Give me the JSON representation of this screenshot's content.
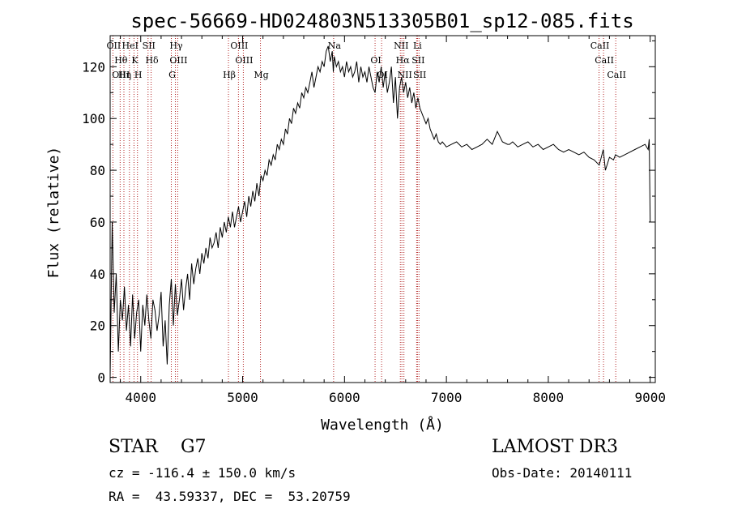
{
  "chart_data": {
    "type": "line",
    "title": "spec-56669-HD024803N513305B01_sp12-085.fits",
    "xlabel": "Wavelength (Å)",
    "ylabel": "Flux (relative)",
    "xlim": [
      3700,
      9050
    ],
    "ylim": [
      -2,
      132
    ],
    "xticks": [
      4000,
      5000,
      6000,
      7000,
      8000,
      9000
    ],
    "yticks": [
      0,
      20,
      40,
      60,
      80,
      100,
      120
    ],
    "grid": false,
    "series": [
      {
        "name": "flux",
        "x": [
          3700,
          3720,
          3740,
          3760,
          3780,
          3800,
          3820,
          3840,
          3860,
          3880,
          3900,
          3920,
          3940,
          3960,
          3980,
          4000,
          4020,
          4040,
          4060,
          4080,
          4100,
          4120,
          4140,
          4160,
          4180,
          4200,
          4220,
          4240,
          4260,
          4280,
          4300,
          4320,
          4340,
          4360,
          4380,
          4400,
          4420,
          4440,
          4460,
          4480,
          4500,
          4520,
          4540,
          4560,
          4580,
          4600,
          4620,
          4640,
          4660,
          4680,
          4700,
          4720,
          4740,
          4760,
          4780,
          4800,
          4820,
          4840,
          4860,
          4880,
          4900,
          4920,
          4940,
          4960,
          4980,
          5000,
          5020,
          5040,
          5060,
          5080,
          5100,
          5120,
          5140,
          5160,
          5180,
          5200,
          5220,
          5240,
          5260,
          5280,
          5300,
          5320,
          5340,
          5360,
          5380,
          5400,
          5420,
          5440,
          5460,
          5480,
          5500,
          5520,
          5540,
          5560,
          5580,
          5600,
          5620,
          5640,
          5660,
          5680,
          5700,
          5720,
          5740,
          5760,
          5780,
          5800,
          5820,
          5840,
          5860,
          5880,
          5890,
          5900,
          5920,
          5940,
          5960,
          5980,
          6000,
          6020,
          6040,
          6060,
          6080,
          6100,
          6120,
          6140,
          6160,
          6180,
          6200,
          6220,
          6240,
          6260,
          6280,
          6300,
          6320,
          6340,
          6360,
          6380,
          6400,
          6420,
          6440,
          6460,
          6480,
          6500,
          6520,
          6540,
          6560,
          6580,
          6600,
          6620,
          6640,
          6660,
          6680,
          6700,
          6720,
          6740,
          6760,
          6780,
          6800,
          6820,
          6840,
          6860,
          6880,
          6900,
          6920,
          6940,
          6960,
          6980,
          7000,
          7050,
          7100,
          7150,
          7200,
          7250,
          7300,
          7350,
          7400,
          7450,
          7500,
          7550,
          7600,
          7620,
          7650,
          7700,
          7750,
          7800,
          7850,
          7900,
          7950,
          8000,
          8050,
          8100,
          8150,
          8200,
          8250,
          8300,
          8350,
          8400,
          8450,
          8500,
          8540,
          8560,
          8600,
          8640,
          8660,
          8700,
          8750,
          8800,
          8850,
          8900,
          8950,
          8980,
          8990,
          9000
        ],
        "values": [
          0,
          60,
          25,
          40,
          10,
          30,
          22,
          35,
          18,
          28,
          12,
          32,
          15,
          25,
          30,
          10,
          28,
          20,
          32,
          22,
          15,
          30,
          26,
          18,
          24,
          33,
          12,
          22,
          5,
          28,
          38,
          20,
          36,
          24,
          30,
          38,
          26,
          34,
          40,
          30,
          44,
          36,
          42,
          46,
          40,
          48,
          44,
          50,
          46,
          54,
          50,
          52,
          56,
          50,
          58,
          54,
          60,
          56,
          62,
          58,
          64,
          58,
          62,
          66,
          60,
          64,
          68,
          62,
          70,
          66,
          72,
          68,
          75,
          70,
          78,
          76,
          80,
          78,
          84,
          82,
          86,
          84,
          90,
          88,
          92,
          90,
          96,
          94,
          100,
          98,
          104,
          102,
          106,
          104,
          110,
          108,
          112,
          110,
          114,
          118,
          112,
          116,
          120,
          118,
          122,
          120,
          126,
          128,
          122,
          126,
          118,
          124,
          120,
          122,
          118,
          120,
          116,
          122,
          118,
          120,
          116,
          118,
          122,
          114,
          120,
          116,
          118,
          114,
          120,
          116,
          112,
          110,
          118,
          114,
          120,
          112,
          118,
          110,
          114,
          120,
          106,
          116,
          100,
          112,
          116,
          110,
          114,
          108,
          112,
          106,
          110,
          104,
          108,
          104,
          102,
          100,
          98,
          100,
          96,
          94,
          92,
          94,
          91,
          90,
          91,
          90,
          89,
          90,
          91,
          89,
          90,
          88,
          89,
          90,
          92,
          90,
          95,
          91,
          90,
          90,
          91,
          89,
          90,
          91,
          89,
          90,
          88,
          89,
          90,
          88,
          87,
          88,
          87,
          86,
          87,
          85,
          84,
          82,
          88,
          80,
          85,
          84,
          86,
          85,
          86,
          87,
          88,
          89,
          90,
          88,
          92,
          60
        ]
      }
    ],
    "lines": [
      {
        "wave": 3727,
        "labels": [
          "OII"
        ]
      },
      {
        "wave": 3798,
        "labels": [
          "Hθ",
          "OIII"
        ]
      },
      {
        "wave": 3835,
        "labels": [
          "Hη"
        ]
      },
      {
        "wave": 3889,
        "labels": [
          "HeI"
        ]
      },
      {
        "wave": 3934,
        "labels": [
          "K"
        ]
      },
      {
        "wave": 3968,
        "labels": [
          "H"
        ]
      },
      {
        "wave": 4072,
        "labels": [
          "SII"
        ]
      },
      {
        "wave": 4102,
        "labels": [
          "Hδ"
        ]
      },
      {
        "wave": 4300,
        "labels": [
          "G"
        ]
      },
      {
        "wave": 4340,
        "labels": [
          "Hγ"
        ]
      },
      {
        "wave": 4363,
        "labels": [
          "OIII"
        ]
      },
      {
        "wave": 4861,
        "labels": [
          "Hβ"
        ]
      },
      {
        "wave": 4959,
        "labels": [
          "OIII"
        ]
      },
      {
        "wave": 5007,
        "labels": [
          "OIII"
        ]
      },
      {
        "wave": 5175,
        "labels": [
          "Mg"
        ]
      },
      {
        "wave": 5893,
        "labels": [
          "Na"
        ]
      },
      {
        "wave": 6300,
        "labels": [
          "OI"
        ]
      },
      {
        "wave": 6364,
        "labels": [
          "OI"
        ]
      },
      {
        "wave": 6548,
        "labels": [
          "NII"
        ]
      },
      {
        "wave": 6563,
        "labels": [
          "Hα"
        ]
      },
      {
        "wave": 6583,
        "labels": [
          "NII"
        ]
      },
      {
        "wave": 6708,
        "labels": [
          "Li"
        ]
      },
      {
        "wave": 6716,
        "labels": [
          "SII"
        ]
      },
      {
        "wave": 6731,
        "labels": [
          "SII"
        ]
      },
      {
        "wave": 8498,
        "labels": [
          "CaII"
        ]
      },
      {
        "wave": 8542,
        "labels": [
          "CaII"
        ]
      },
      {
        "wave": 8662,
        "labels": [
          "CaII"
        ]
      }
    ]
  },
  "info": {
    "object_class": "STAR    G7",
    "redshift": "cz = -116.4 ± 150.0 km/s",
    "coordinates": "RA =  43.59337, DEC =  53.20759",
    "survey": "LAMOST DR3",
    "obs_date": "Obs-Date: 20140111"
  },
  "colors": {
    "spectrum": "#000000",
    "line_marker": "#b22222",
    "text": "#000000"
  }
}
